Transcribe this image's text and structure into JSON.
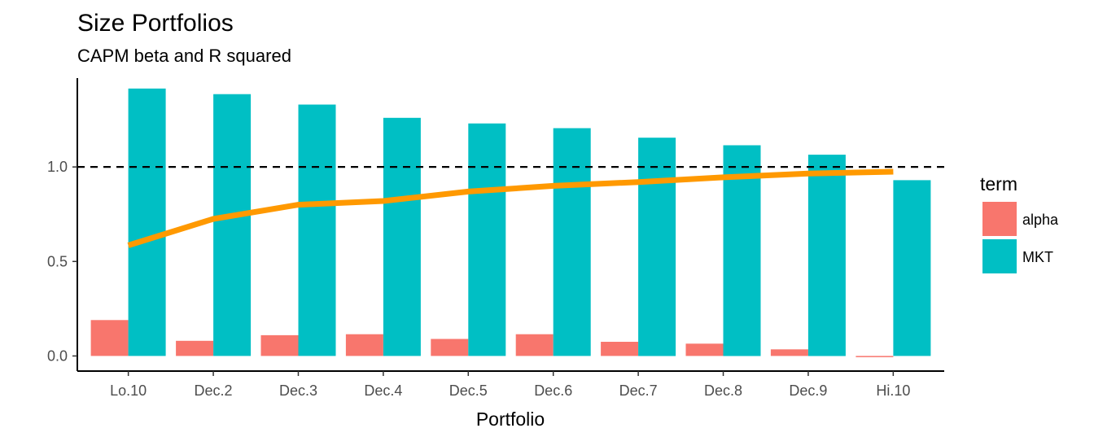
{
  "chart_data": {
    "type": "bar",
    "title": "Size Portfolios",
    "subtitle": "CAPM beta and R squared",
    "xlabel": "Portfolio",
    "ylabel": "",
    "categories": [
      "Lo.10",
      "Dec.2",
      "Dec.3",
      "Dec.4",
      "Dec.5",
      "Dec.6",
      "Dec.7",
      "Dec.8",
      "Dec.9",
      "Hi.10"
    ],
    "yticks": [
      "0.0",
      "0.5",
      "1.0"
    ],
    "ylim": [
      -0.08,
      1.47
    ],
    "legend": {
      "title": "term",
      "position": "right"
    },
    "series": [
      {
        "name": "alpha",
        "color": "#F8766D",
        "values": [
          0.19,
          0.08,
          0.11,
          0.115,
          0.09,
          0.115,
          0.075,
          0.065,
          0.035,
          -0.005
        ]
      },
      {
        "name": "MKT",
        "color": "#00BFC4",
        "values": [
          1.415,
          1.385,
          1.33,
          1.26,
          1.23,
          1.205,
          1.155,
          1.115,
          1.065,
          0.93
        ]
      }
    ],
    "line": {
      "color": "#FF9900",
      "values": [
        0.585,
        0.725,
        0.8,
        0.82,
        0.87,
        0.9,
        0.92,
        0.945,
        0.965,
        0.975
      ]
    },
    "reference_line": {
      "y": 1.0,
      "style": "dashed"
    },
    "grid": false
  }
}
